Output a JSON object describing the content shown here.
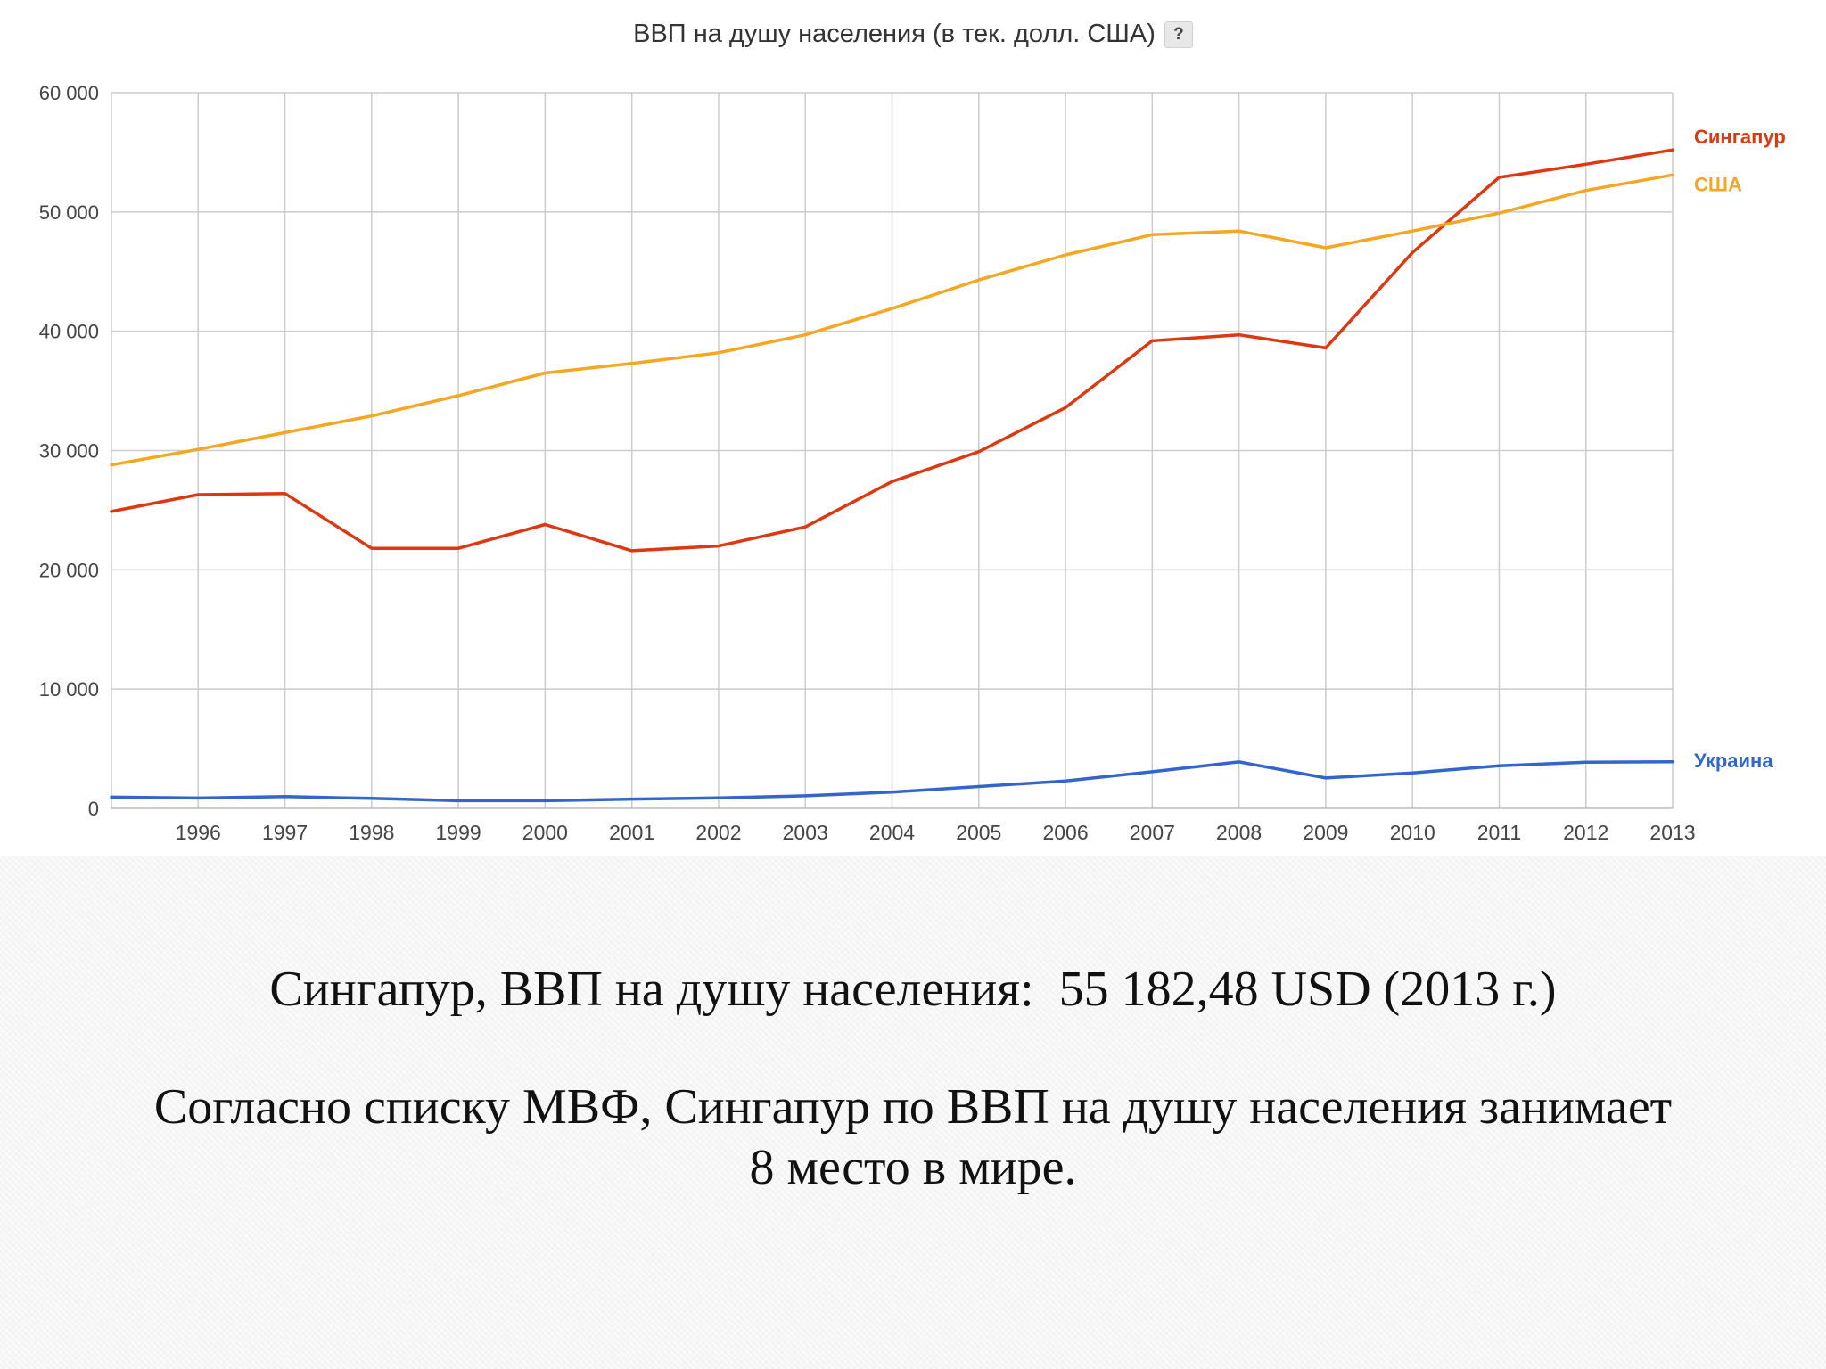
{
  "chart_data": {
    "type": "line",
    "title": "ВВП на душу населения (в тек. долл. США)",
    "help_label": "?",
    "x": [
      1995,
      1996,
      1997,
      1998,
      1999,
      2000,
      2001,
      2002,
      2003,
      2004,
      2005,
      2006,
      2007,
      2008,
      2009,
      2010,
      2011,
      2012,
      2013
    ],
    "x_tick_labels": [
      "1996",
      "1997",
      "1998",
      "1999",
      "2000",
      "2001",
      "2002",
      "2003",
      "2004",
      "2005",
      "2006",
      "2007",
      "2008",
      "2009",
      "2010",
      "2011",
      "2012",
      "2013"
    ],
    "y_tick_values": [
      0,
      10000,
      20000,
      30000,
      40000,
      50000,
      60000
    ],
    "y_tick_labels": [
      "0",
      "10 000",
      "20 000",
      "30 000",
      "40 000",
      "50 000",
      "60 000"
    ],
    "xlim": [
      1995,
      2013
    ],
    "ylim": [
      0,
      60000
    ],
    "grid": true,
    "legend": "inline labels at line ends, right",
    "series": [
      {
        "name": "Сингапур",
        "color": "#dc3912",
        "values": [
          24900,
          26300,
          26400,
          21800,
          21800,
          23800,
          21600,
          22000,
          23600,
          27400,
          29900,
          33600,
          39200,
          39700,
          38600,
          46600,
          52900,
          54000,
          55200
        ]
      },
      {
        "name": "США",
        "color": "#f5a623",
        "values": [
          28800,
          30100,
          31500,
          32900,
          34600,
          36500,
          37300,
          38200,
          39700,
          41900,
          44300,
          46400,
          48100,
          48400,
          47000,
          48400,
          49900,
          51800,
          53100
        ]
      },
      {
        "name": "Украина",
        "color": "#3366cc",
        "values": [
          940,
          870,
          990,
          840,
          640,
          640,
          780,
          880,
          1050,
          1370,
          1830,
          2300,
          3070,
          3890,
          2550,
          2970,
          3570,
          3860,
          3900
        ]
      }
    ]
  },
  "captions": {
    "line_1": "Сингапур, ВВП на душу населения:  55 182,48 USD (2013 г.)",
    "line_2": "Согласно списку МВФ, Сингапур по ВВП на душу населения занимает\n8 место в мире."
  }
}
